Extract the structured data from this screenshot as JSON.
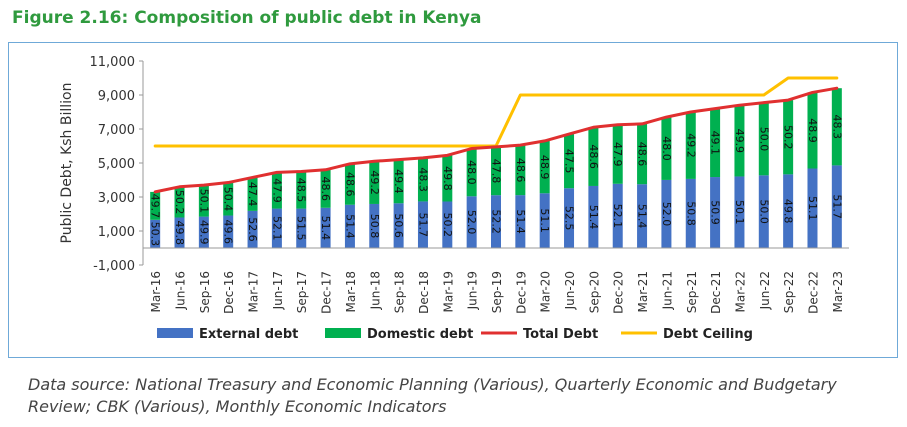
{
  "figure": {
    "title": "Figure 2.16: Composition of public debt in Kenya",
    "source": "Data source: National Treasury and Economic Planning (Various), Quarterly Economic and Budgetary Review; CBK (Various), Monthly Economic Indicators"
  },
  "chart_data": {
    "type": "bar",
    "stacked": true,
    "ylabel": "Public Debt, Ksh Billion",
    "xlabel": "",
    "ylim": [
      -1000,
      11000
    ],
    "yticks": [
      -1000,
      1000,
      3000,
      5000,
      7000,
      9000,
      11000
    ],
    "ytick_labels": [
      "-1,000",
      "1,000",
      "3,000",
      "5,000",
      "7,000",
      "9,000",
      "11,000"
    ],
    "grid": false,
    "legend_position": "bottom",
    "categories": [
      "Mar-16",
      "Jun-16",
      "Sep-16",
      "Dec-16",
      "Mar-17",
      "Jun-17",
      "Sep-17",
      "Dec-17",
      "Mar-18",
      "Jun-18",
      "Sep-18",
      "Dec-18",
      "Mar-19",
      "Jun-19",
      "Sep-19",
      "Dec-19",
      "Mar-20",
      "Jun-20",
      "Sep-20",
      "Dec-20",
      "Mar-21",
      "Jun-21",
      "Sep-21",
      "Dec-21",
      "Mar-22",
      "Jun-22",
      "Sep-22",
      "Dec-22",
      "Mar-23"
    ],
    "series": [
      {
        "name": "External debt",
        "kind": "bar",
        "color": "#4472c4",
        "share_labels": [
          "50.3",
          "49.8",
          "49.9",
          "49.6",
          "52.6",
          "52.1",
          "51.5",
          "51.4",
          "51.4",
          "50.8",
          "50.6",
          "51.7",
          "50.2",
          "52.0",
          "52.2",
          "51.4",
          "51.1",
          "52.5",
          "51.4",
          "52.1",
          "51.4",
          "52.0",
          "50.8",
          "50.9",
          "50.1",
          "50.0",
          "49.8",
          "51.1",
          "51.7"
        ]
      },
      {
        "name": "Domestic debt",
        "kind": "bar",
        "color": "#00b050",
        "share_labels": [
          "49.7",
          "50.2",
          "50.1",
          "50.4",
          "47.4",
          "47.9",
          "48.5",
          "48.6",
          "48.6",
          "49.2",
          "49.4",
          "48.3",
          "49.8",
          "48.0",
          "47.8",
          "48.6",
          "48.9",
          "47.5",
          "48.6",
          "47.9",
          "48.6",
          "48.0",
          "49.2",
          "49.1",
          "49.9",
          "50.0",
          "50.2",
          "48.9",
          "48.3"
        ]
      },
      {
        "name": "Total Debt",
        "kind": "line",
        "color": "#e03030",
        "values": [
          3300,
          3600,
          3700,
          3850,
          4150,
          4450,
          4500,
          4600,
          4950,
          5100,
          5200,
          5300,
          5450,
          5850,
          5950,
          6050,
          6300,
          6700,
          7100,
          7250,
          7300,
          7700,
          8000,
          8200,
          8400,
          8550,
          8700,
          9150,
          9400
        ]
      },
      {
        "name": "Debt Ceiling",
        "kind": "line",
        "color": "#ffc000",
        "values": [
          6000,
          6000,
          6000,
          6000,
          6000,
          6000,
          6000,
          6000,
          6000,
          6000,
          6000,
          6000,
          6000,
          6000,
          6000,
          9000,
          9000,
          9000,
          9000,
          9000,
          9000,
          9000,
          9000,
          9000,
          9000,
          9000,
          10000,
          10000,
          10000
        ]
      }
    ]
  }
}
